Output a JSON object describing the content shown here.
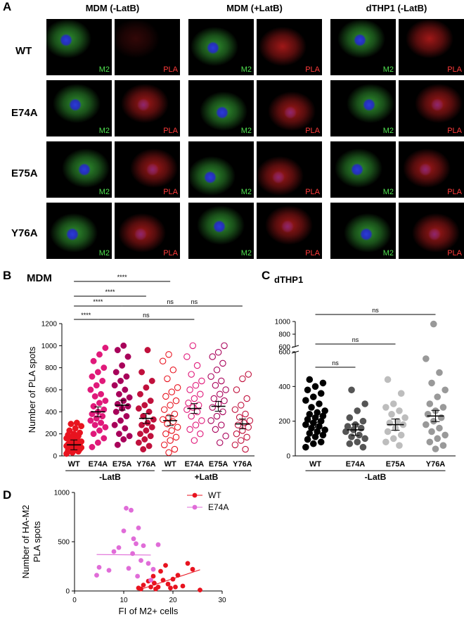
{
  "panel_labels": {
    "a": "A",
    "b": "B",
    "c": "C",
    "d": "D"
  },
  "panel_a": {
    "columns": [
      "MDM (-LatB)",
      "MDM (+LatB)",
      "dTHP1 (-LatB)"
    ],
    "rows": [
      "WT",
      "E74A",
      "E75A",
      "Y76A"
    ],
    "green_label": "M2",
    "red_label": "PLA"
  },
  "colors": {
    "wt_red": "#e8131f",
    "e74a_pink": "#e0197a",
    "e75a_dark": "#a8005a",
    "y76a_dark": "#c0103c",
    "violet": "#e06cd8",
    "black": "#000000"
  },
  "chart_data": [
    {
      "id": "B",
      "type": "scatter",
      "title": "MDM",
      "ylabel": "Number of PLA spots",
      "ylim": [
        0,
        1200
      ],
      "yticks": [
        "0",
        "200",
        "400",
        "600",
        "800",
        "1000",
        "1200"
      ],
      "categories": [
        "WT",
        "E74A",
        "E75A",
        "Y76A",
        "WT",
        "E74A",
        "E75A",
        "Y76A"
      ],
      "groups": [
        "-LatB",
        "+LatB"
      ],
      "means": [
        100,
        400,
        460,
        340,
        320,
        430,
        450,
        290
      ],
      "values": [
        [
          20,
          30,
          40,
          50,
          55,
          60,
          65,
          70,
          75,
          80,
          85,
          90,
          95,
          100,
          105,
          110,
          115,
          120,
          125,
          130,
          140,
          150,
          160,
          170,
          180,
          190,
          200,
          210,
          230,
          250,
          270,
          290,
          300
        ],
        [
          80,
          120,
          160,
          200,
          230,
          260,
          280,
          300,
          320,
          340,
          360,
          380,
          400,
          420,
          450,
          480,
          500,
          540,
          560,
          600,
          640,
          680,
          720,
          760,
          800,
          860,
          920,
          980
        ],
        [
          100,
          150,
          180,
          200,
          250,
          280,
          320,
          360,
          400,
          430,
          450,
          470,
          500,
          530,
          560,
          600,
          640,
          680,
          720,
          760,
          820,
          900,
          960,
          1000
        ],
        [
          60,
          90,
          120,
          150,
          180,
          200,
          230,
          260,
          280,
          300,
          330,
          360,
          400,
          430,
          460,
          500,
          560,
          620,
          680,
          760,
          960
        ],
        [
          30,
          60,
          100,
          140,
          170,
          200,
          230,
          260,
          290,
          310,
          330,
          350,
          380,
          420,
          460,
          500,
          540,
          580,
          620,
          700,
          780,
          860,
          920
        ],
        [
          140,
          200,
          240,
          280,
          320,
          360,
          400,
          420,
          440,
          460,
          480,
          520,
          560,
          600,
          640,
          680,
          740,
          820,
          900,
          1000
        ],
        [
          120,
          180,
          240,
          280,
          320,
          360,
          400,
          440,
          470,
          500,
          520,
          560,
          600,
          640,
          680,
          720,
          780,
          840,
          900,
          940,
          1000
        ],
        [
          60,
          100,
          140,
          170,
          200,
          230,
          260,
          280,
          300,
          320,
          350,
          380,
          420,
          460,
          520,
          600,
          700,
          740
        ]
      ],
      "significance": [
        {
          "from": 0,
          "to": 4,
          "label": "****"
        },
        {
          "from": 0,
          "to": 3,
          "label": "****"
        },
        {
          "from": 0,
          "to": 2,
          "label": "****"
        },
        {
          "from": 2,
          "to": 6,
          "label": "ns"
        },
        {
          "from": 0,
          "to": 1,
          "label": "****"
        },
        {
          "from": 1,
          "to": 5,
          "label": "ns"
        },
        {
          "from": 3,
          "to": 7,
          "label": "ns"
        }
      ]
    },
    {
      "id": "C",
      "type": "scatter",
      "title": "dTHP1",
      "ylabel": "",
      "categories": [
        "WT",
        "E74A",
        "E75A",
        "Y76A"
      ],
      "group": "-LatB",
      "y_broken": true,
      "yticks_lower": [
        "0",
        "200",
        "400",
        "600"
      ],
      "yticks_upper": [
        "600",
        "800",
        "1000"
      ],
      "means": [
        195,
        150,
        180,
        230
      ],
      "values": [
        [
          50,
          70,
          80,
          95,
          110,
          120,
          130,
          140,
          150,
          160,
          170,
          180,
          190,
          200,
          210,
          220,
          230,
          240,
          250,
          260,
          280,
          300,
          320,
          340,
          360,
          380,
          400,
          420,
          440
        ],
        [
          50,
          70,
          80,
          100,
          110,
          120,
          140,
          150,
          160,
          170,
          180,
          200,
          220,
          260,
          300,
          380
        ],
        [
          60,
          80,
          100,
          120,
          140,
          160,
          180,
          190,
          200,
          220,
          240,
          260,
          280,
          300,
          360,
          440
        ],
        [
          40,
          60,
          80,
          100,
          120,
          140,
          160,
          180,
          200,
          220,
          240,
          260,
          280,
          300,
          340,
          380,
          420,
          480,
          560,
          960
        ]
      ],
      "significance": [
        {
          "from": 0,
          "to": 3,
          "label": "ns"
        },
        {
          "from": 0,
          "to": 2,
          "label": "ns"
        },
        {
          "from": 0,
          "to": 1,
          "label": "ns"
        }
      ]
    },
    {
      "id": "D",
      "type": "scatter",
      "xlabel": "FI of M2+ cells",
      "ylabel": "Number of HA-M2 PLA spots",
      "xlim": [
        0,
        30
      ],
      "ylim": [
        0,
        1000
      ],
      "xticks": [
        "0",
        "10",
        "20",
        "30"
      ],
      "yticks": [
        "0",
        "500",
        "1000"
      ],
      "series": [
        {
          "name": "WT",
          "x": [
            13,
            14,
            15,
            15.5,
            16,
            16.5,
            17,
            17.5,
            18,
            18.5,
            19,
            19.5,
            20,
            21,
            22,
            23,
            24,
            25.5,
            13.5,
            16.2,
            20.5
          ],
          "y": [
            30,
            60,
            100,
            40,
            150,
            20,
            40,
            200,
            110,
            260,
            70,
            30,
            120,
            160,
            50,
            280,
            220,
            10,
            20,
            80,
            40
          ],
          "fit": [
            [
              13,
              10
            ],
            [
              25.5,
              215
            ]
          ]
        },
        {
          "name": "E74A",
          "x": [
            4.5,
            5,
            7,
            8,
            9,
            10,
            10.5,
            11,
            11.5,
            12,
            12.5,
            13,
            13.5,
            14,
            15,
            15.5,
            16,
            17,
            11.8,
            12.8
          ],
          "y": [
            160,
            240,
            210,
            400,
            440,
            610,
            840,
            230,
            820,
            530,
            480,
            640,
            310,
            460,
            280,
            110,
            220,
            470,
            380,
            150
          ],
          "fit": [
            [
              4.5,
              370
            ],
            [
              15.5,
              365
            ]
          ]
        }
      ]
    }
  ]
}
